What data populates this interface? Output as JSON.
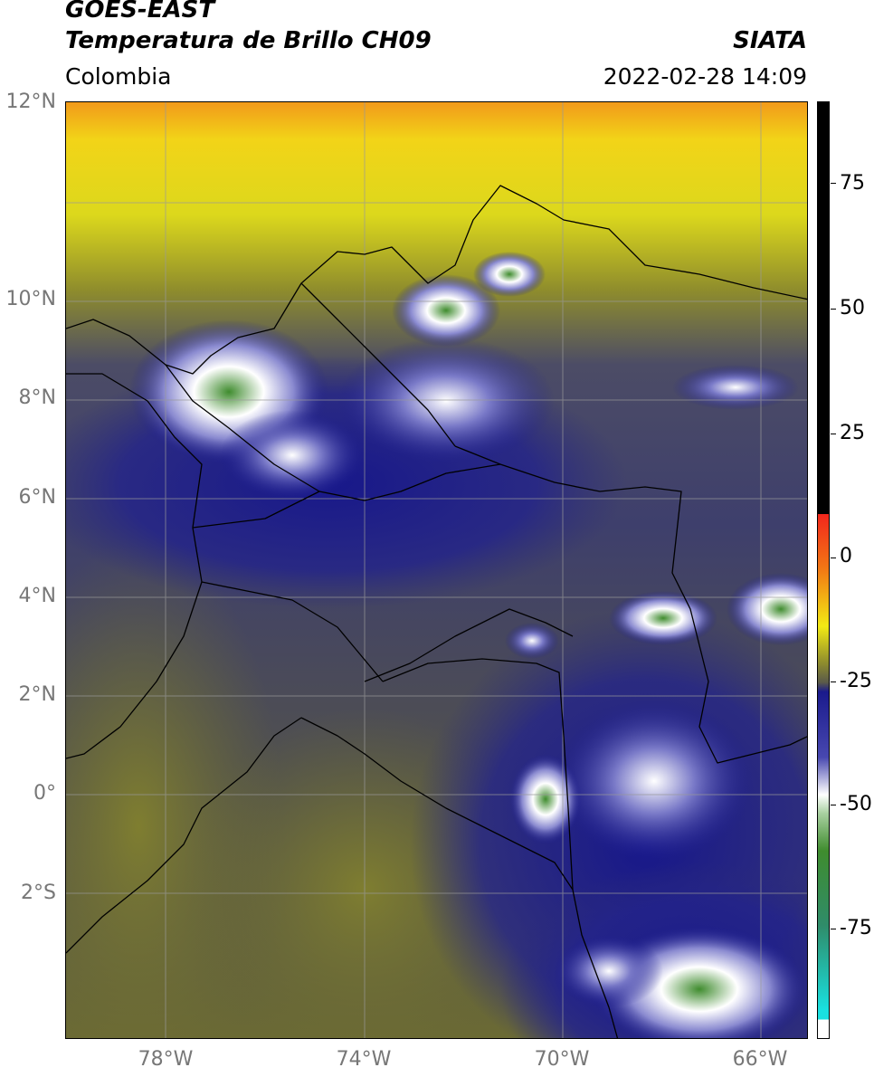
{
  "header": {
    "satellite": "GOES-EAST",
    "product": "Temperatura de Brillo CH09",
    "region": "Colombia",
    "source": "SIATA",
    "datetime": "2022-02-28 14:09"
  },
  "map": {
    "lat_labels": [
      "12°N",
      "10°N",
      "8°N",
      "6°N",
      "4°N",
      "2°N",
      "0°",
      "2°S"
    ],
    "lon_labels": [
      "78°W",
      "74°W",
      "70°W",
      "66°W"
    ],
    "grid": true
  },
  "colorbar": {
    "ticks": [
      "75",
      "50",
      "25",
      "0",
      "-25",
      "-50",
      "-75"
    ],
    "range": [
      -95,
      90
    ],
    "colors": {
      "top": "#000000",
      "warm": "#f2261c",
      "yellow": "#f2ea14",
      "olive": "#8c8a2e",
      "navy": "#1a1a8c",
      "white": "#ffffff",
      "green": "#3f8c2e",
      "cyan": "#19e0e0"
    }
  }
}
